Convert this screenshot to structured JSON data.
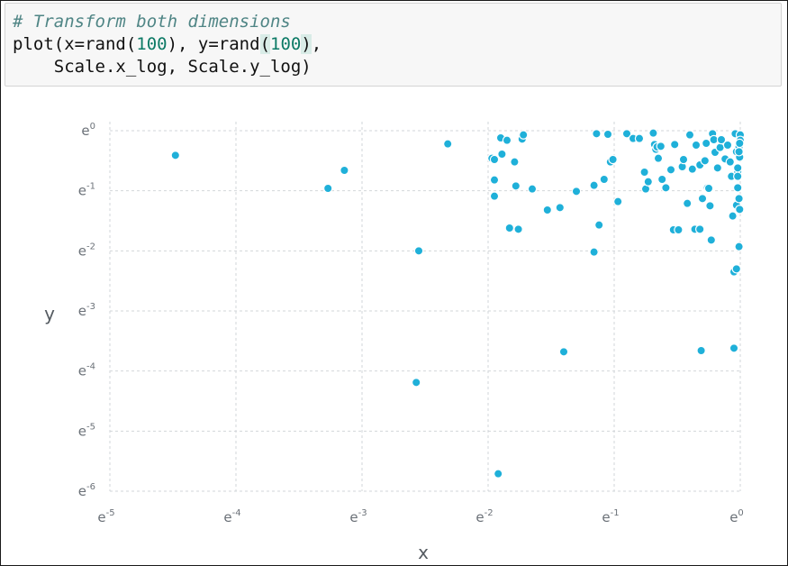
{
  "code": {
    "comment": "# Transform both dimensions",
    "line2_prefix": "plot(x=rand(",
    "arg1": "100",
    "line2_mid": "), y=rand",
    "paren_open": "(",
    "arg2": "100",
    "paren_close": ")",
    "line2_suffix": ",",
    "line3": "    Scale.x_log, Scale.y_log)"
  },
  "colors": {
    "point": "#1fb0d9",
    "grid": "#d2d6d9",
    "code_background": "#f7f7f7"
  },
  "chart_data": {
    "type": "scatter",
    "xlabel": "x",
    "ylabel": "y",
    "x_scale": "log",
    "y_scale": "log",
    "log_base": "e",
    "xlim_exponent": [
      -5,
      0
    ],
    "ylim_exponent": [
      -6,
      0
    ],
    "x_ticks": [
      {
        "base": "e",
        "exp": "-5"
      },
      {
        "base": "e",
        "exp": "-4"
      },
      {
        "base": "e",
        "exp": "-3"
      },
      {
        "base": "e",
        "exp": "-2"
      },
      {
        "base": "e",
        "exp": "-1"
      },
      {
        "base": "e",
        "exp": "0"
      }
    ],
    "y_ticks": [
      {
        "base": "e",
        "exp": "0"
      },
      {
        "base": "e",
        "exp": "-1"
      },
      {
        "base": "e",
        "exp": "-2"
      },
      {
        "base": "e",
        "exp": "-3"
      },
      {
        "base": "e",
        "exp": "-4"
      },
      {
        "base": "e",
        "exp": "-5"
      },
      {
        "base": "e",
        "exp": "-6"
      }
    ],
    "grid": true,
    "legend": "none",
    "points_log": [
      [
        -4.48,
        -0.41
      ],
      [
        -3.27,
        -0.96
      ],
      [
        -3.14,
        -0.66
      ],
      [
        -2.55,
        -2.0
      ],
      [
        -2.57,
        -4.19
      ],
      [
        -2.32,
        -0.22
      ],
      [
        -1.92,
        -5.71
      ],
      [
        -1.9,
        -0.12
      ],
      [
        -1.85,
        -0.16
      ],
      [
        -1.89,
        -0.39
      ],
      [
        -1.79,
        -0.52
      ],
      [
        -1.83,
        -1.62
      ],
      [
        -1.78,
        -0.92
      ],
      [
        -1.76,
        -1.64
      ],
      [
        -1.73,
        -0.14
      ],
      [
        -1.72,
        -0.07
      ],
      [
        -1.97,
        -0.46
      ],
      [
        -1.95,
        -0.48
      ],
      [
        -1.95,
        -0.82
      ],
      [
        -1.95,
        -1.09
      ],
      [
        -1.65,
        -0.97
      ],
      [
        -1.53,
        -1.32
      ],
      [
        -1.4,
        -3.68
      ],
      [
        -1.43,
        -1.28
      ],
      [
        -1.3,
        -1.01
      ],
      [
        -1.16,
        -0.91
      ],
      [
        -1.16,
        -2.02
      ],
      [
        -1.14,
        -0.05
      ],
      [
        -1.12,
        -1.57
      ],
      [
        -1.08,
        -0.81
      ],
      [
        -1.05,
        -0.06
      ],
      [
        -1.03,
        -0.52
      ],
      [
        -1.01,
        -0.48
      ],
      [
        -0.97,
        -1.18
      ],
      [
        -0.9,
        -0.05
      ],
      [
        -0.85,
        -0.13
      ],
      [
        -0.8,
        -0.13
      ],
      [
        -0.76,
        -0.69
      ],
      [
        -0.75,
        -0.97
      ],
      [
        -0.73,
        -0.85
      ],
      [
        -0.69,
        -0.04
      ],
      [
        -0.68,
        -0.23
      ],
      [
        -0.67,
        -0.31
      ],
      [
        -0.66,
        -0.27
      ],
      [
        -0.65,
        -0.46
      ],
      [
        -0.63,
        -0.26
      ],
      [
        -0.62,
        -0.81
      ],
      [
        -0.59,
        -0.95
      ],
      [
        -0.55,
        -0.65
      ],
      [
        -0.53,
        -1.65
      ],
      [
        -0.52,
        -0.23
      ],
      [
        -0.49,
        -1.65
      ],
      [
        -0.46,
        -0.6
      ],
      [
        -0.45,
        -0.48
      ],
      [
        -0.42,
        -1.21
      ],
      [
        -0.4,
        -0.07
      ],
      [
        -0.38,
        -0.64
      ],
      [
        -0.36,
        -1.64
      ],
      [
        -0.35,
        -0.24
      ],
      [
        -0.32,
        -0.57
      ],
      [
        -0.32,
        -1.64
      ],
      [
        -0.31,
        -3.66
      ],
      [
        -0.3,
        -1.13
      ],
      [
        -0.28,
        -0.5
      ],
      [
        -0.27,
        -0.21
      ],
      [
        -0.26,
        -0.95
      ],
      [
        -0.25,
        -0.96
      ],
      [
        -0.24,
        -1.25
      ],
      [
        -0.23,
        -1.82
      ],
      [
        -0.22,
        -0.05
      ],
      [
        -0.21,
        -0.15
      ],
      [
        -0.2,
        -0.36
      ],
      [
        -0.18,
        -0.62
      ],
      [
        -0.16,
        -0.28
      ],
      [
        -0.15,
        -0.15
      ],
      [
        -0.12,
        -0.47
      ],
      [
        -0.1,
        -0.24
      ],
      [
        -0.08,
        -0.52
      ],
      [
        -0.07,
        -0.76
      ],
      [
        -0.06,
        -1.42
      ],
      [
        -0.05,
        -3.62
      ],
      [
        -0.05,
        -2.35
      ],
      [
        -0.04,
        -0.05
      ],
      [
        -0.03,
        -0.35
      ],
      [
        -0.02,
        -0.95
      ],
      [
        -0.03,
        -1.24
      ],
      [
        -0.02,
        -0.68
      ],
      [
        -0.03,
        -2.3
      ],
      [
        -0.01,
        -0.22
      ],
      [
        -0.02,
        -0.62
      ],
      [
        -0.02,
        -0.76
      ],
      [
        -0.01,
        -1.13
      ],
      [
        0.0,
        -0.07
      ],
      [
        0.0,
        -0.16
      ],
      [
        -0.01,
        -0.27
      ],
      [
        -0.01,
        -1.93
      ],
      [
        -0.005,
        -1.31
      ],
      [
        -0.005,
        -0.21
      ],
      [
        -0.005,
        -0.44
      ],
      [
        -0.01,
        -0.35
      ]
    ]
  }
}
